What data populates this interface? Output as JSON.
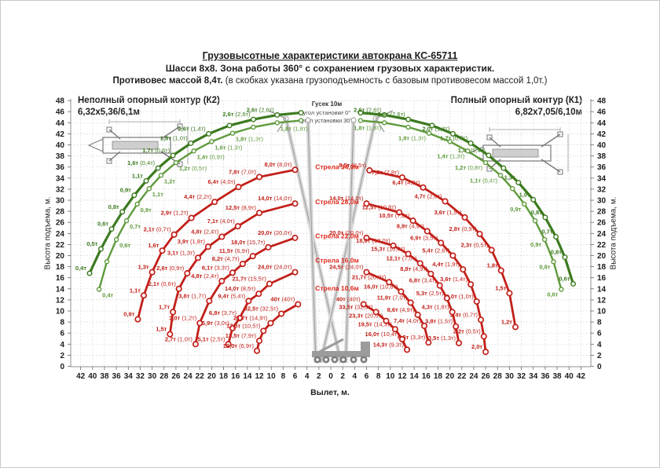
{
  "page": {
    "title1": "Грузовысотные характеристики автокрана КС-65711",
    "title2": "Шасси 8х8. Зона работы 360° с сохранением грузовых характеристик.",
    "title3_bold": "Противовес массой 8,4т.",
    "title3_rest": " (в скобках указана грузоподъемность с базовым противовесом массой 1,0т.)"
  },
  "panels": {
    "left": {
      "line1": "Неполный опорный контур (К2)",
      "line2": "6,32x5,36/6,1м"
    },
    "right": {
      "line1": "Полный опорный контур (К1)",
      "line2": "6,82x7,05/6,10м"
    }
  },
  "jib_note": {
    "line1": "Гусек 10м",
    "line2": "угол установки 0°",
    "line3": "угол установки 30°"
  },
  "axes": {
    "x_title": "Вылет, м.",
    "y_title": "Высота подъема, м.",
    "x_max": 42,
    "y_max": 48,
    "step": 2
  },
  "colors": {
    "green": "#3c7a1f",
    "green_light": "#5f9a3c",
    "red": "#c2201a",
    "red_bright": "#e02a1e",
    "grid": "#cdd2cd",
    "axis": "#8f8f8f",
    "text": "#1c1c1c",
    "draw": "#9b9b9b",
    "draw_light": "#d6d6d6"
  },
  "chart_data": {
    "type": "line",
    "title": "Грузовысотные характеристики автокрана КС-65711",
    "xlabel": "Вылет, м.",
    "ylabel": "Высота подъема, м.",
    "x_axis": {
      "mirrored": true,
      "max": 42,
      "tick_step": 2
    },
    "y_axis": {
      "min": 0,
      "max": 48,
      "tick_step": 2
    },
    "grid": true,
    "boom_labels": [
      {
        "text": "Стрела 34,0м",
        "y": 35.6
      },
      {
        "text": "Стрела 28,0м",
        "y": 29.3
      },
      {
        "text": "Стрела 22,0м",
        "y": 23.1
      },
      {
        "text": "Стрела 16,0м",
        "y": 18.7
      },
      {
        "text": "Стрела 10,6м",
        "y": 13.7
      }
    ],
    "series": [
      {
        "name": "k2-jib-0deg",
        "side": "left",
        "color": "green",
        "width": 3.2,
        "marker": 2.8,
        "anchor": "end",
        "dx": -4,
        "dy": -4,
        "points": [
          [
            5,
            45.8,
            ""
          ],
          [
            9,
            45.4,
            "2,6т (2,6т)"
          ],
          [
            13,
            44.6,
            "2,6т (2,6т)"
          ],
          [
            17,
            43.5,
            ""
          ],
          [
            20.5,
            42,
            "2,6т (1,4т)"
          ],
          [
            23.5,
            40.3,
            "1,8т (1,0т)"
          ],
          [
            26.5,
            38.1,
            "1,7т (0,6т)"
          ],
          [
            29,
            35.8,
            "1,6т (0,4т)"
          ],
          [
            31,
            33.5,
            "1,1т"
          ],
          [
            33,
            30.9,
            "0,9т"
          ],
          [
            35,
            27.9,
            "0,8т"
          ],
          [
            36.8,
            24.8,
            "0,6т"
          ],
          [
            38.6,
            21.2,
            "0,5т"
          ],
          [
            40.5,
            16.8,
            "0,4т"
          ]
        ]
      },
      {
        "name": "k2-jib-30deg",
        "side": "left",
        "color": "green_light",
        "width": 2.4,
        "marker": 2.5,
        "anchor": "start",
        "dx": 4,
        "dy": 10,
        "points": [
          [
            5,
            44.4,
            ""
          ],
          [
            9,
            44,
            "1,8т (1,8т)"
          ],
          [
            13,
            43.2,
            ""
          ],
          [
            16.5,
            42.1,
            "1,8т (1,3т)"
          ],
          [
            20,
            40.6,
            "1,6т (1,3т)"
          ],
          [
            23,
            38.9,
            "1,4т (0,9т)"
          ],
          [
            26,
            36.8,
            "1,2т (0,5т)"
          ],
          [
            28.5,
            34.5,
            "1,2т"
          ],
          [
            30.5,
            32.1,
            "1,1т"
          ],
          [
            32.5,
            29.3,
            "0,9т"
          ],
          [
            34.3,
            26.3,
            "0,7т"
          ],
          [
            36,
            22.9,
            "0,6т"
          ],
          [
            37.6,
            18.9,
            ""
          ],
          [
            38.9,
            13.9,
            "0,4т"
          ]
        ]
      },
      {
        "name": "k1-jib-0deg",
        "side": "right",
        "color": "green",
        "width": 3.2,
        "marker": 2.8,
        "anchor": "end",
        "dx": -4,
        "dy": -4,
        "points": [
          [
            5,
            45.8,
            ""
          ],
          [
            9,
            45.4,
            "2,6т (2,6т)"
          ],
          [
            13,
            44.6,
            "2,6т (2,6т)"
          ],
          [
            17,
            43.5,
            ""
          ],
          [
            20.5,
            42,
            "2,0т (1,3т)"
          ],
          [
            23.5,
            40.3,
            "1,7т (0,7т)"
          ],
          [
            26.5,
            38.1,
            "1,4т (0,4т)"
          ],
          [
            29,
            35.8,
            ""
          ],
          [
            31.5,
            33.2,
            "1,3т"
          ],
          [
            34,
            30.1,
            "1,0т"
          ],
          [
            36,
            26.9,
            "0,8т"
          ],
          [
            37.8,
            23.4,
            "0,7т"
          ],
          [
            39.3,
            19.7,
            "0,8т"
          ],
          [
            40.7,
            14.9,
            "0,6т"
          ]
        ]
      },
      {
        "name": "k1-jib-30deg",
        "side": "right",
        "color": "green_light",
        "width": 2.4,
        "marker": 2.5,
        "anchor": "end",
        "dx": -4,
        "dy": 9,
        "points": [
          [
            5,
            44.4,
            ""
          ],
          [
            9,
            44,
            "1,8т (1,8т)"
          ],
          [
            13,
            43.2,
            ""
          ],
          [
            16.5,
            42.1,
            "1,8т (1,3т)"
          ],
          [
            20,
            40.6,
            ""
          ],
          [
            23,
            38.9,
            "1,4т (1,3т)"
          ],
          [
            26,
            36.8,
            "1,2т (0,8т)"
          ],
          [
            28.5,
            34.5,
            "1,1т (0,4т)"
          ],
          [
            30.5,
            32.1,
            ""
          ],
          [
            32.5,
            29.3,
            "0,9т"
          ],
          [
            34.3,
            26.3,
            ""
          ],
          [
            35.9,
            22.9,
            "0,9т"
          ],
          [
            37.4,
            18.9,
            "0,8т"
          ],
          [
            38.7,
            13.9,
            "0,6т"
          ]
        ]
      },
      {
        "name": "k2-boom-34m",
        "side": "left",
        "color": "red",
        "width": 2.8,
        "marker": 3.2,
        "anchor": "end",
        "dx": -4,
        "dy": -4,
        "points": [
          [
            6,
            35.5,
            "8,0т (8,0т)"
          ],
          [
            12,
            34.2,
            "7,8т (7,0т)"
          ],
          [
            15.5,
            32.4,
            "6,4т (4,0т)"
          ],
          [
            19.5,
            29.7,
            "4,4т (2,2т)"
          ],
          [
            23.4,
            26.8,
            "2,9т (1,2т)"
          ],
          [
            26.3,
            23.8,
            "2,1т (0,7т)"
          ],
          [
            28.3,
            20.9,
            "1,6т"
          ],
          [
            30,
            17,
            "1,3т"
          ],
          [
            31.4,
            12.8,
            "1,1т"
          ],
          [
            32.4,
            8.5,
            "0,9т"
          ]
        ]
      },
      {
        "name": "k2-boom-28m",
        "side": "left",
        "color": "red",
        "width": 2.8,
        "marker": 3.2,
        "anchor": "end",
        "dx": -4,
        "dy": -4,
        "points": [
          [
            6,
            29.4,
            "14,0т (14,0т)"
          ],
          [
            12,
            27.7,
            "12,5т (8,9т)"
          ],
          [
            15.6,
            25.3,
            "7,1т (4,0т)"
          ],
          [
            18.3,
            23.4,
            "4,8т (2,4т)"
          ],
          [
            20.6,
            21.6,
            "3,9т (1,8т)"
          ],
          [
            22.3,
            19.6,
            "3,1т (1,3т)"
          ],
          [
            24.1,
            16.8,
            "2,6т (0,9т)"
          ],
          [
            25.5,
            14,
            "2,1т (0,6т)"
          ],
          [
            26.5,
            9.8,
            "1,7т"
          ],
          [
            27,
            5.8,
            "1,5т"
          ]
        ]
      },
      {
        "name": "k2-boom-22m",
        "side": "left",
        "color": "red",
        "width": 2.8,
        "marker": 3.2,
        "anchor": "end",
        "dx": -4,
        "dy": -4,
        "points": [
          [
            6,
            23.2,
            "20,0т (20,0т)"
          ],
          [
            10.5,
            21.5,
            "18,0т (15,7т)"
          ],
          [
            13.1,
            19.9,
            "11,5т (6,9т)"
          ],
          [
            14.8,
            18.5,
            "8,2т (4,7т)"
          ],
          [
            16.5,
            16.9,
            "6,1т (3,3т)"
          ],
          [
            18.3,
            15.4,
            "4,8т (2,4т)"
          ],
          [
            20.4,
            11.8,
            "3,8т (1,7т)"
          ],
          [
            22,
            7.8,
            "3,0т (1,2т)"
          ],
          [
            22.7,
            4,
            "2,7т (1,0т)"
          ]
        ]
      },
      {
        "name": "k2-boom-16m",
        "side": "left",
        "color": "red",
        "width": 2.8,
        "marker": 3.2,
        "anchor": "end",
        "dx": -4,
        "dy": -4,
        "points": [
          [
            6,
            17,
            "24,0т (24,0т)"
          ],
          [
            10.3,
            14.9,
            "21,7т (15,5т)"
          ],
          [
            12.1,
            13.1,
            "14,0т (8,5т)"
          ],
          [
            13.8,
            11.8,
            "9,4т (5,4т)"
          ],
          [
            15.3,
            8.7,
            "6,8т (3,7т)"
          ],
          [
            16.5,
            6.9,
            "5,9т (3,0т)"
          ],
          [
            17.2,
            4,
            "5,1т (2,5т)"
          ]
        ]
      },
      {
        "name": "k2-boom-10-6m",
        "side": "left",
        "color": "red",
        "width": 2.8,
        "marker": 3.2,
        "anchor": "end",
        "dx": -4,
        "dy": -4,
        "points": [
          [
            5.5,
            11.2,
            "40т (40т)"
          ],
          [
            8.3,
            9.5,
            "32,5т (32,5т)"
          ],
          [
            10.1,
            7.8,
            "21,7т (14,9т)"
          ],
          [
            11.3,
            6.4,
            "17,5т (10,5т)"
          ],
          [
            12,
            4.6,
            "13,5т (7,9т)"
          ],
          [
            12.4,
            2.8,
            "12,0т (6,9т)"
          ]
        ]
      },
      {
        "name": "k1-boom-34m",
        "side": "right",
        "color": "red",
        "width": 2.8,
        "marker": 3.2,
        "anchor": "end",
        "dx": -4,
        "dy": -4,
        "points": [
          [
            6.5,
            35.4,
            "8,5т (8,5т)"
          ],
          [
            12,
            34.1,
            "7,8т (7,8т)"
          ],
          [
            15.5,
            32.3,
            "6,4т (4,9т)"
          ],
          [
            19.2,
            29.8,
            "4,7т (2,6т)"
          ],
          [
            22.5,
            26.9,
            "3,6т (1,5т)"
          ],
          [
            25,
            23.9,
            "2,8т (0,9т)"
          ],
          [
            27,
            21,
            "2,3т (0,5т)"
          ],
          [
            28.6,
            17.3,
            "1,8т"
          ],
          [
            30,
            13.2,
            "1,5т"
          ],
          [
            31,
            7.1,
            "1,2т"
          ]
        ]
      },
      {
        "name": "k1-boom-28m",
        "side": "right",
        "color": "red",
        "width": 2.8,
        "marker": 3.2,
        "anchor": "end",
        "dx": -4,
        "dy": -4,
        "points": [
          [
            6,
            29.4,
            "14,0т (14,0т)"
          ],
          [
            11.5,
            27.8,
            "12,5т (10,8т)"
          ],
          [
            13.8,
            26.3,
            "10,5т (7,0т)"
          ],
          [
            16.2,
            24.4,
            "8,9т (4,9т)"
          ],
          [
            18.5,
            22.3,
            "6,9т (3,5т)"
          ],
          [
            20.5,
            20,
            "5,4т (2,6т)"
          ],
          [
            22.2,
            17.5,
            "4,4т (1,9т)"
          ],
          [
            23.5,
            14.8,
            "3,6т (1,4т)"
          ],
          [
            24.5,
            11.7,
            "3,0т (1,0т)"
          ],
          [
            25.2,
            8.4,
            "2,4т (0,7т)"
          ],
          [
            25.7,
            5.4,
            "2,2т (0,5т)"
          ],
          [
            26,
            2.6,
            "2,0т"
          ]
        ]
      },
      {
        "name": "k1-boom-22m",
        "side": "right",
        "color": "red",
        "width": 2.8,
        "marker": 3.2,
        "anchor": "end",
        "dx": -4,
        "dy": -4,
        "points": [
          [
            6,
            23.2,
            "20,0т (20,0т)"
          ],
          [
            10.5,
            21.8,
            "18,0т (18,0т)"
          ],
          [
            13,
            20.3,
            "15,3т (10,8т)"
          ],
          [
            15,
            18.6,
            "12,1т (7,0т)"
          ],
          [
            16.8,
            16.7,
            "8,8т (4,9т)"
          ],
          [
            18.3,
            14.6,
            "6,8т (3,4т)"
          ],
          [
            19.5,
            12.3,
            "5,3т (2,5т)"
          ],
          [
            20.4,
            9.8,
            "4,3т (1,8т)"
          ],
          [
            21,
            7.2,
            "3,8т (1,5т)"
          ],
          [
            21.5,
            4.2,
            "3,5т (1,3т)"
          ]
        ]
      },
      {
        "name": "k1-boom-16m",
        "side": "right",
        "color": "red",
        "width": 2.8,
        "marker": 3.2,
        "anchor": "end",
        "dx": -4,
        "dy": -4,
        "points": [
          [
            6,
            17,
            "24,5т (24,0т)"
          ],
          [
            9.8,
            15.2,
            "21,7т (20,0т)"
          ],
          [
            11.8,
            13.5,
            "16,0т (10,8т)"
          ],
          [
            13.4,
            11.5,
            "11,9т (7,0т)"
          ],
          [
            14.6,
            9.3,
            "8,6т (4,9т)"
          ],
          [
            15.7,
            7.3,
            "7,4т (4,0т)"
          ],
          [
            16.4,
            4.3,
            "6,5т (3,3т)"
          ]
        ]
      },
      {
        "name": "k1-boom-10-6m",
        "side": "right",
        "color": "red",
        "width": 2.8,
        "marker": 3.2,
        "anchor": "end",
        "dx": -4,
        "dy": -4,
        "points": [
          [
            5.5,
            11.2,
            "40т (40т)"
          ],
          [
            7.6,
            9.8,
            "33,5т (32,5т)"
          ],
          [
            9.3,
            8.2,
            "23,3т (20,0т)"
          ],
          [
            10.8,
            6.7,
            "19,5т (14,3т)"
          ],
          [
            12,
            4.9,
            "16,0т (10,4т)"
          ],
          [
            12.8,
            3,
            "14,3т (9,3т)"
          ]
        ]
      }
    ]
  }
}
